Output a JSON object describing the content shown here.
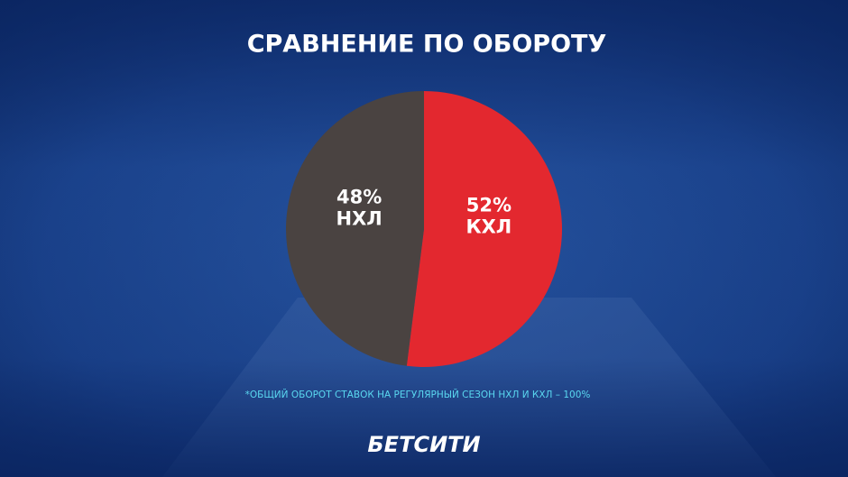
{
  "chart_data": {
    "type": "pie",
    "title": "СРАВНЕНИЕ ПО ОБОРОТУ",
    "categories": [
      "КХЛ",
      "НХЛ"
    ],
    "values": [
      52,
      48
    ],
    "value_labels": [
      "52%",
      "48%"
    ],
    "colors": [
      "#e3282f",
      "#4a4341"
    ],
    "footnote": "*ОБЩИЙ ОБОРОТ СТАВОК НА РЕГУЛЯРНЫЙ СЕЗОН НХЛ И КХЛ – 100%",
    "brand": "БЕТСИТИ"
  }
}
